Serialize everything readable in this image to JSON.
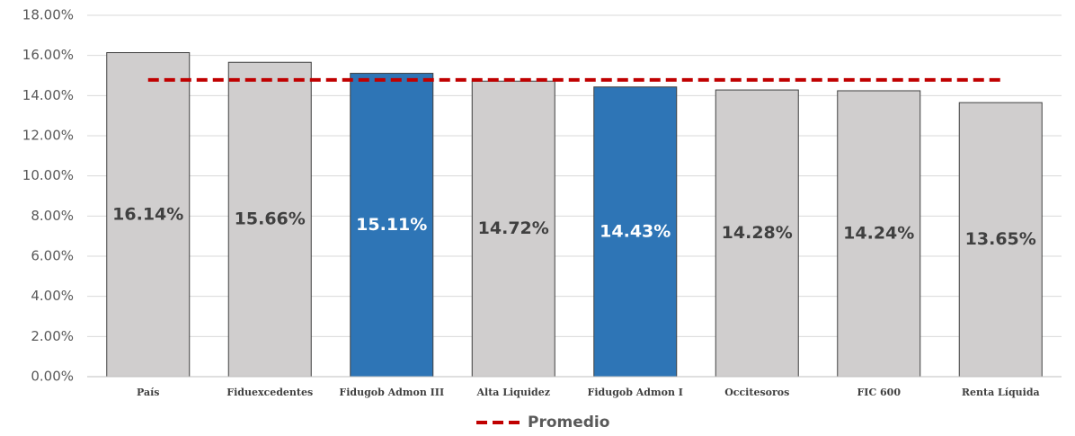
{
  "chart_data": {
    "type": "bar",
    "categories": [
      "País",
      "Fiduexcedentes",
      "Fidugob Admon III",
      "Alta Liquidez",
      "Fidugob Admon I",
      "Occitesoros",
      "FIC 600",
      "Renta Líquida"
    ],
    "values": [
      16.14,
      15.66,
      15.11,
      14.72,
      14.43,
      14.28,
      14.24,
      13.65
    ],
    "value_labels": [
      "16.14%",
      "15.66%",
      "15.11%",
      "14.72%",
      "14.43%",
      "14.28%",
      "14.24%",
      "13.65%"
    ],
    "colors": [
      "#d0cece",
      "#d0cece",
      "#2e75b6",
      "#d0cece",
      "#2e75b6",
      "#d0cece",
      "#d0cece",
      "#d0cece"
    ],
    "ylim": [
      0,
      18
    ],
    "yticks": [
      {
        "value": 0,
        "label": "0.00%"
      },
      {
        "value": 2,
        "label": "2.00%"
      },
      {
        "value": 4,
        "label": "4.00%"
      },
      {
        "value": 6,
        "label": "6.00%"
      },
      {
        "value": 8,
        "label": "8.00%"
      },
      {
        "value": 10,
        "label": "10.00%"
      },
      {
        "value": 12,
        "label": "12.00%"
      },
      {
        "value": 14,
        "label": "14.00%"
      },
      {
        "value": 16,
        "label": "16.00%"
      },
      {
        "value": 18,
        "label": "18.00%"
      }
    ],
    "grid": true,
    "reference_line": {
      "name": "Promedio",
      "value": 14.78,
      "color": "#c00000"
    },
    "legend": "bottom"
  }
}
